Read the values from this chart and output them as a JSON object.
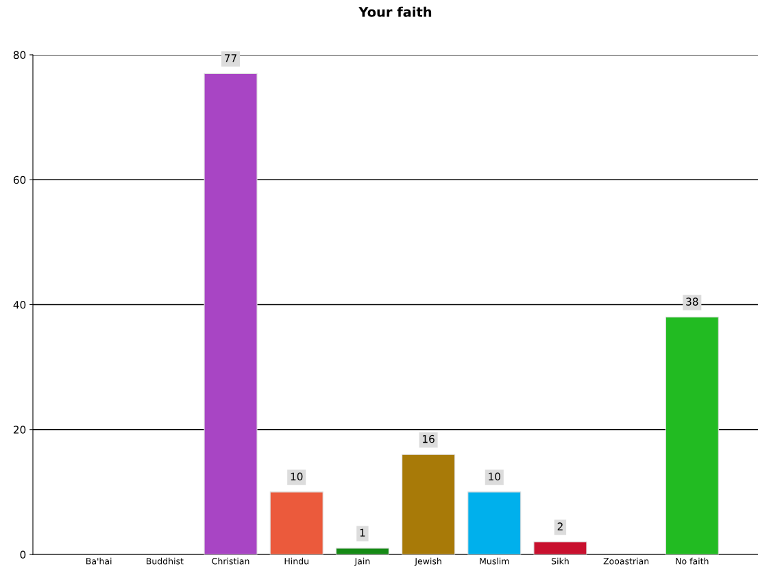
{
  "chart_data": {
    "type": "bar",
    "title": "Your faith",
    "categories": [
      "Ba'hai",
      "Buddhist",
      "Christian",
      "Hindu",
      "Jain",
      "Jewish",
      "Muslim",
      "Sikh",
      "Zooastrian",
      "No faith"
    ],
    "values": [
      0,
      0,
      77,
      10,
      1,
      16,
      10,
      2,
      0,
      38
    ],
    "value_labels": [
      null,
      null,
      "77",
      "10",
      "1",
      "16",
      "10",
      "2",
      null,
      "38"
    ],
    "colors": [
      null,
      null,
      "#a845c4",
      "#eb5a3c",
      "#158a15",
      "#a87a08",
      "#00b0ec",
      "#c8102e",
      null,
      "#22bb22"
    ],
    "ylim": [
      0,
      80
    ],
    "yticks": [
      0,
      20,
      40,
      60,
      80
    ],
    "grid": "y"
  }
}
